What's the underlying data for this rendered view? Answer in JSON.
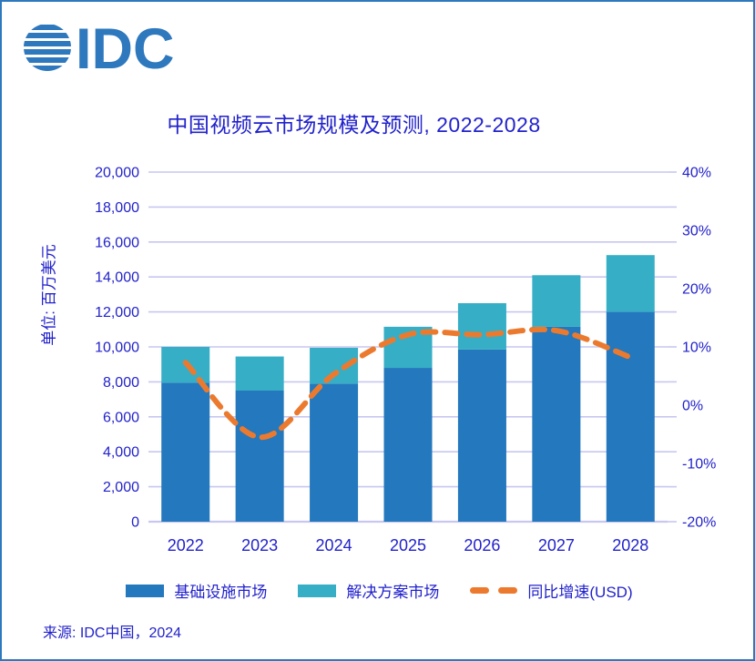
{
  "frame": {
    "border_color": "#2e78be",
    "background": "#ffffff"
  },
  "logo": {
    "text": "IDC",
    "color": "#2e78be"
  },
  "title": {
    "text": "中国视频云市场规模及预测, 2022-2028",
    "color": "#2222cc"
  },
  "source": {
    "text": "来源: IDC中国，2024"
  },
  "colors": {
    "infrastructure_bar": "#2478bd",
    "solution_bar": "#36aec6",
    "growth_line": "#ec7a2e",
    "gridline": "#c7c7f1",
    "axis_line": "#b4b5ec",
    "text": "#2222cc"
  },
  "chart_data": {
    "type": "bar",
    "subtype": "stacked-bars-with-dashed-growth-line",
    "title": "中国视频云市场规模及预测, 2022-2028",
    "categories": [
      "2022",
      "2023",
      "2024",
      "2025",
      "2026",
      "2027",
      "2028"
    ],
    "series": [
      {
        "name": "基础设施市场",
        "type": "bar",
        "stacked": true,
        "color": "#2478bd",
        "values": [
          7950,
          7500,
          7900,
          8800,
          9850,
          11150,
          12000
        ]
      },
      {
        "name": "解决方案市场",
        "type": "bar",
        "stacked": true,
        "color": "#36aec6",
        "values": [
          2050,
          1950,
          2050,
          2350,
          2650,
          2950,
          3250
        ]
      },
      {
        "name": "同比增速(USD)",
        "type": "line",
        "axis": "right",
        "color": "#ec7a2e",
        "dashed": true,
        "smooth": true,
        "values_percent": [
          7.3,
          -5.5,
          5.3,
          12.1,
          12.1,
          12.8,
          8.2
        ]
      }
    ],
    "stack_totals": [
      10000,
      9450,
      9950,
      11150,
      12500,
      14100,
      15250
    ],
    "left_axis": {
      "title": "单位: 百万美元",
      "min": 0,
      "max": 20000,
      "step": 2000,
      "tick_labels": [
        "0",
        "2,000",
        "4,000",
        "6,000",
        "8,000",
        "10,000",
        "12,000",
        "14,000",
        "16,000",
        "18,000",
        "20,000"
      ]
    },
    "right_axis": {
      "min": -20,
      "max": 40,
      "step": 10,
      "tick_labels": [
        "-20%",
        "-10%",
        "0%",
        "10%",
        "20%",
        "30%",
        "40%"
      ]
    },
    "grid": {
      "horizontal": true,
      "vertical": false
    },
    "legend_position": "bottom"
  }
}
